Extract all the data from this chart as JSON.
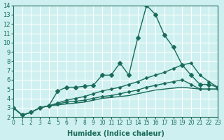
{
  "xlabel": "Humidex (Indice chaleur)",
  "ylabel": "",
  "xlim": [
    0,
    23
  ],
  "ylim": [
    2,
    14
  ],
  "yticks": [
    2,
    3,
    4,
    5,
    6,
    7,
    8,
    9,
    10,
    11,
    12,
    13,
    14
  ],
  "xticks": [
    0,
    1,
    2,
    3,
    4,
    5,
    6,
    7,
    8,
    9,
    10,
    11,
    12,
    13,
    14,
    15,
    16,
    17,
    18,
    19,
    20,
    21,
    22,
    23
  ],
  "bg_color": "#cff0f0",
  "grid_color": "#ffffff",
  "line_color": "#1a6b5a",
  "lines": [
    {
      "x": [
        0,
        1,
        2,
        3,
        4,
        5,
        6,
        7,
        8,
        9,
        10,
        11,
        12,
        13,
        14,
        15,
        16,
        17,
        18,
        19,
        20,
        21,
        22,
        23
      ],
      "y": [
        3.0,
        2.2,
        2.5,
        3.0,
        3.2,
        4.8,
        5.2,
        5.2,
        5.3,
        5.4,
        6.5,
        6.5,
        7.8,
        6.5,
        10.5,
        14.0,
        13.0,
        10.8,
        9.5,
        7.6,
        6.5,
        5.5,
        5.5,
        5.2
      ],
      "marker": "D",
      "markersize": 3
    },
    {
      "x": [
        0,
        1,
        2,
        3,
        4,
        5,
        6,
        7,
        8,
        9,
        10,
        11,
        12,
        13,
        14,
        15,
        16,
        17,
        18,
        19,
        20,
        21,
        22,
        23
      ],
      "y": [
        3.0,
        2.2,
        2.5,
        3.0,
        3.2,
        3.5,
        3.8,
        4.0,
        4.2,
        4.5,
        4.8,
        5.0,
        5.2,
        5.5,
        5.8,
        6.2,
        6.5,
        6.8,
        7.2,
        7.6,
        7.8,
        6.5,
        5.8,
        5.2
      ],
      "marker": "D",
      "markersize": 2
    },
    {
      "x": [
        0,
        1,
        2,
        3,
        4,
        5,
        6,
        7,
        8,
        9,
        10,
        11,
        12,
        13,
        14,
        15,
        16,
        17,
        18,
        19,
        20,
        21,
        22,
        23
      ],
      "y": [
        3.0,
        2.2,
        2.5,
        3.0,
        3.2,
        3.4,
        3.6,
        3.7,
        3.8,
        4.0,
        4.2,
        4.3,
        4.5,
        4.7,
        4.9,
        5.2,
        5.4,
        5.6,
        5.8,
        6.0,
        5.5,
        5.0,
        5.0,
        5.0
      ],
      "marker": "D",
      "markersize": 2
    },
    {
      "x": [
        0,
        1,
        2,
        3,
        4,
        5,
        6,
        7,
        8,
        9,
        10,
        11,
        12,
        13,
        14,
        15,
        16,
        17,
        18,
        19,
        20,
        21,
        22,
        23
      ],
      "y": [
        3.0,
        2.2,
        2.5,
        3.0,
        3.2,
        3.3,
        3.4,
        3.5,
        3.6,
        3.8,
        4.0,
        4.1,
        4.2,
        4.3,
        4.5,
        4.7,
        4.9,
        5.0,
        5.1,
        5.2,
        5.1,
        5.0,
        5.0,
        5.0
      ],
      "marker": null,
      "markersize": 0
    }
  ]
}
